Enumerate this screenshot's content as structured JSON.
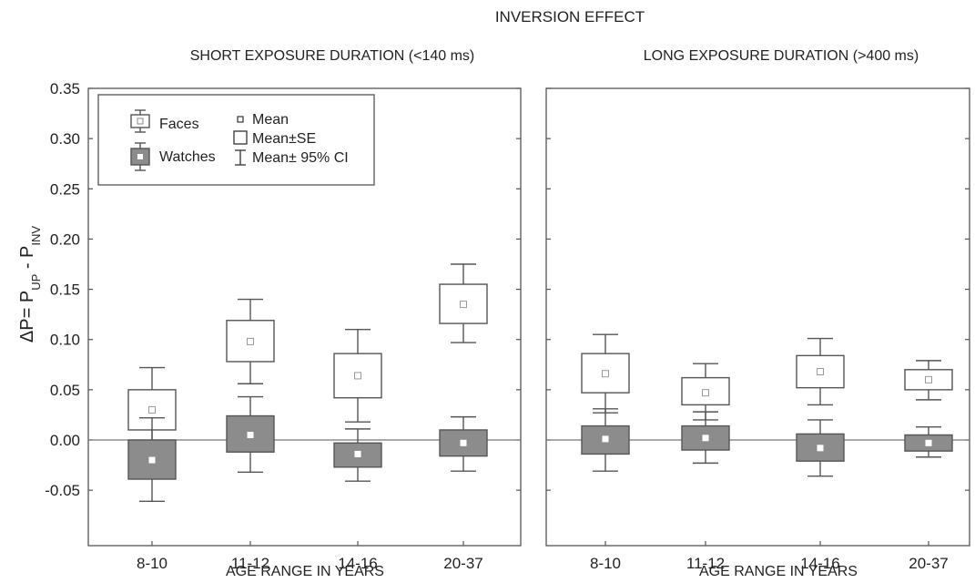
{
  "chart_data": {
    "type": "box",
    "title": "INVERSION EFFECT",
    "ylabel": "ΔP= P",
    "ylabel_sub1": "UP",
    "ylabel_mid": " - P",
    "ylabel_sub2": "INV",
    "xlabel": "AGE RANGE IN YEARS",
    "ylim": [
      -0.08,
      0.35
    ],
    "yticks": [
      0.35,
      0.3,
      0.25,
      0.2,
      0.15,
      0.1,
      0.05,
      0.0,
      -0.05
    ],
    "ytick_labels": [
      "0.35",
      "0.30",
      "0.25",
      "0.20",
      "0.15",
      "0.10",
      "0.05",
      "0.00",
      "-0.05"
    ],
    "categories": [
      "8-10",
      "11-12",
      "14-16",
      "20-37"
    ],
    "legend": {
      "placement": "top-left",
      "series_labels": [
        "Faces",
        "Watches"
      ],
      "stat_labels": [
        "Mean",
        "Mean±SE",
        "Mean± 95% CI"
      ]
    },
    "colors": {
      "faces_fill": "#ffffff",
      "watches_fill": "#8c8c8c",
      "line": "#555555"
    },
    "panels": [
      {
        "title": "SHORT EXPOSURE DURATION (<140 ms)",
        "series": [
          {
            "name": "Faces",
            "mean": [
              0.03,
              0.098,
              0.064,
              0.135
            ],
            "se_low": [
              0.01,
              0.078,
              0.042,
              0.116
            ],
            "se_high": [
              0.05,
              0.119,
              0.086,
              0.155
            ],
            "ci_low": [
              -0.007,
              0.056,
              0.018,
              0.097
            ],
            "ci_high": [
              0.072,
              0.14,
              0.11,
              0.175
            ]
          },
          {
            "name": "Watches",
            "mean": [
              -0.02,
              0.005,
              -0.014,
              -0.003
            ],
            "se_low": [
              -0.039,
              -0.012,
              -0.027,
              -0.016
            ],
            "se_high": [
              0.0,
              0.024,
              -0.003,
              0.01
            ],
            "ci_low": [
              -0.061,
              -0.032,
              -0.041,
              -0.031
            ],
            "ci_high": [
              0.022,
              0.043,
              0.011,
              0.023
            ]
          }
        ]
      },
      {
        "title": "LONG EXPOSURE DURATION (>400 ms)",
        "series": [
          {
            "name": "Faces",
            "mean": [
              0.066,
              0.047,
              0.068,
              0.06
            ],
            "se_low": [
              0.047,
              0.035,
              0.052,
              0.05
            ],
            "se_high": [
              0.086,
              0.062,
              0.084,
              0.07
            ],
            "ci_low": [
              0.027,
              0.02,
              0.035,
              0.04
            ],
            "ci_high": [
              0.105,
              0.076,
              0.101,
              0.079
            ]
          },
          {
            "name": "Watches",
            "mean": [
              0.001,
              0.002,
              -0.008,
              -0.003
            ],
            "se_low": [
              -0.014,
              -0.01,
              -0.021,
              -0.011
            ],
            "se_high": [
              0.014,
              0.014,
              0.006,
              0.005
            ],
            "ci_low": [
              -0.031,
              -0.023,
              -0.036,
              -0.017
            ],
            "ci_high": [
              0.031,
              0.028,
              0.02,
              0.013
            ]
          }
        ]
      }
    ]
  }
}
